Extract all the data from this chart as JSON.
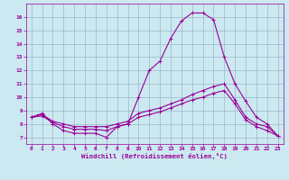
{
  "xlabel": "Windchill (Refroidissement éolien,°C)",
  "background_color": "#cce8f0",
  "line_color": "#990099",
  "grid_color": "#9ab8c8",
  "xlim": [
    -0.5,
    23.5
  ],
  "ylim": [
    6.5,
    17.0
  ],
  "yticks": [
    7,
    8,
    9,
    10,
    11,
    12,
    13,
    14,
    15,
    16
  ],
  "xticks": [
    0,
    1,
    2,
    3,
    4,
    5,
    6,
    7,
    8,
    9,
    10,
    11,
    12,
    13,
    14,
    15,
    16,
    17,
    18,
    19,
    20,
    21,
    22,
    23
  ],
  "line1_x": [
    0,
    1,
    2,
    3,
    4,
    5,
    6,
    7,
    8,
    9,
    10,
    11,
    12,
    13,
    14,
    15,
    16,
    17,
    18,
    19,
    20,
    21,
    22,
    23
  ],
  "line1_y": [
    8.5,
    8.8,
    8.0,
    7.5,
    7.3,
    7.3,
    7.3,
    7.0,
    7.8,
    8.0,
    10.0,
    12.0,
    12.7,
    14.4,
    15.7,
    16.3,
    16.3,
    15.8,
    13.0,
    11.0,
    9.7,
    8.5,
    8.0,
    7.1
  ],
  "line2_x": [
    0,
    1,
    2,
    3,
    4,
    5,
    6,
    7,
    8,
    9,
    10,
    11,
    12,
    13,
    14,
    15,
    16,
    17,
    18,
    19,
    20,
    21,
    22,
    23
  ],
  "line2_y": [
    8.5,
    8.7,
    8.2,
    8.0,
    7.8,
    7.8,
    7.8,
    7.8,
    8.0,
    8.2,
    8.8,
    9.0,
    9.2,
    9.5,
    9.8,
    10.2,
    10.5,
    10.8,
    11.0,
    9.8,
    8.5,
    8.0,
    7.8,
    7.1
  ],
  "line3_x": [
    0,
    1,
    2,
    3,
    4,
    5,
    6,
    7,
    8,
    9,
    10,
    11,
    12,
    13,
    14,
    15,
    16,
    17,
    18,
    19,
    20,
    21,
    22,
    23
  ],
  "line3_y": [
    8.5,
    8.6,
    8.1,
    7.8,
    7.6,
    7.6,
    7.6,
    7.5,
    7.8,
    8.0,
    8.5,
    8.7,
    8.9,
    9.2,
    9.5,
    9.8,
    10.0,
    10.3,
    10.5,
    9.5,
    8.3,
    7.8,
    7.5,
    7.1
  ]
}
